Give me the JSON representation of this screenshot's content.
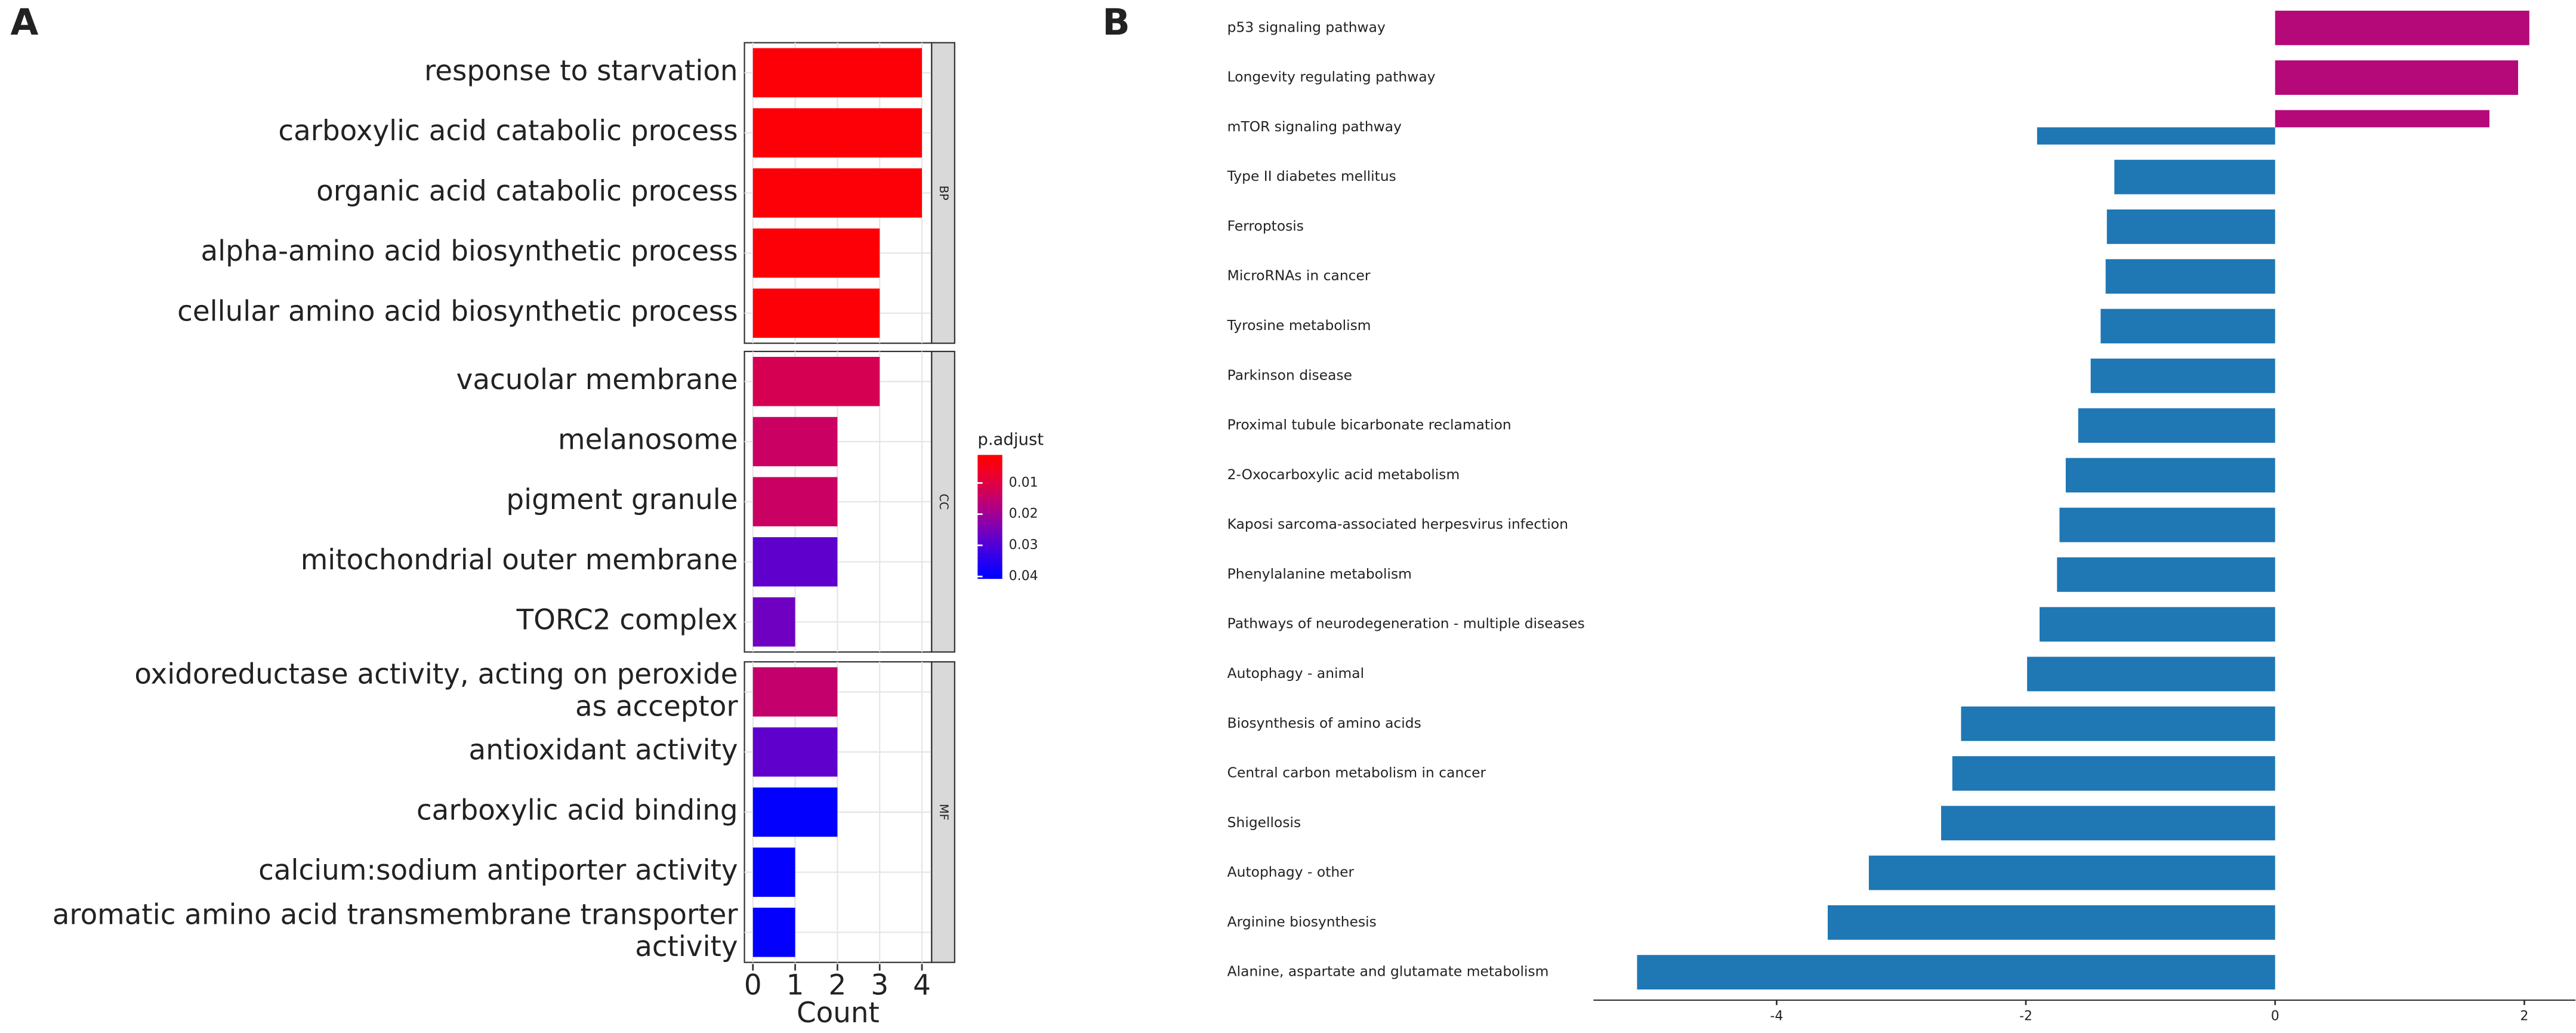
{
  "panels": [
    "A",
    "B"
  ],
  "chart_data": [
    {
      "type": "facet_bar",
      "xlabel": "Count",
      "xlim": [
        -0.2,
        4.23
      ],
      "xticks": [
        0,
        1,
        2,
        3,
        4
      ],
      "legend": {
        "title": "p.adjust",
        "lim": [
          0.001,
          0.0405
        ],
        "ticks": [
          0.01,
          0.02,
          0.03,
          0.04
        ],
        "colors": [
          "#ff0000",
          "#0000ff"
        ]
      },
      "facets": [
        {
          "label": "BP",
          "categories": [
            "response to starvation",
            "carboxylic acid catabolic process",
            "organic acid catabolic process",
            "alpha-amino acid biosynthetic process",
            "cellular amino acid biosynthetic process"
          ],
          "values": [
            4,
            4,
            4,
            3,
            3
          ],
          "p_adjust": [
            0.002,
            0.002,
            0.002,
            0.002,
            0.002
          ]
        },
        {
          "label": "CC",
          "categories": [
            "vacuolar membrane",
            "melanosome",
            "pigment granule",
            "mitochondrial outer membrane",
            "TORC2 complex"
          ],
          "values": [
            3,
            2,
            2,
            2,
            1
          ],
          "p_adjust": [
            0.012,
            0.014,
            0.014,
            0.028,
            0.026
          ]
        },
        {
          "label": "MF",
          "categories": [
            "oxidoreductase activity, acting on peroxide\nas acceptor",
            "antioxidant activity",
            "carboxylic acid binding",
            "calcium:sodium antiporter activity",
            "aromatic amino acid transmembrane transporter\nactivity"
          ],
          "values": [
            2,
            2,
            2,
            1,
            1
          ],
          "p_adjust": [
            0.015,
            0.028,
            0.04,
            0.04,
            0.04
          ]
        }
      ]
    },
    {
      "type": "hbar",
      "categories": [
        "p53 signaling pathway",
        "Longevity regulating pathway",
        "mTOR signaling pathway",
        "Type II diabetes mellitus",
        "Ferroptosis",
        "MicroRNAs in cancer",
        "Tyrosine metabolism",
        "Parkinson disease",
        "Proximal tubule bicarbonate reclamation",
        "2-Oxocarboxylic acid metabolism",
        "Kaposi sarcoma-associated herpesvirus infection",
        "Phenylalanine metabolism",
        "Pathways of neurodegeneration - multiple diseases",
        "Autophagy - animal",
        "Biosynthesis of amino acids",
        "Central carbon metabolism in cancer",
        "Shigellosis",
        "Autophagy - other",
        "Arginine biosynthesis",
        "Alanine, aspartate and glutamate metabolism"
      ],
      "series": [
        {
          "color": "#b5097a",
          "values": [
            2.04,
            1.95,
            1.72,
            null,
            null,
            null,
            null,
            null,
            null,
            null,
            null,
            null,
            null,
            null,
            null,
            null,
            null,
            null,
            null,
            null
          ]
        },
        {
          "color": "#1f77b4",
          "values": [
            null,
            null,
            -1.91,
            -1.29,
            -1.35,
            -1.36,
            -1.4,
            -1.48,
            -1.58,
            -1.68,
            -1.73,
            -1.75,
            -1.89,
            -1.99,
            -2.52,
            -2.59,
            -2.68,
            -3.26,
            -3.59,
            -5.12
          ]
        }
      ],
      "xlim": [
        -5.47,
        2.41
      ],
      "xticks": [
        -4,
        -2,
        0,
        2
      ]
    }
  ]
}
